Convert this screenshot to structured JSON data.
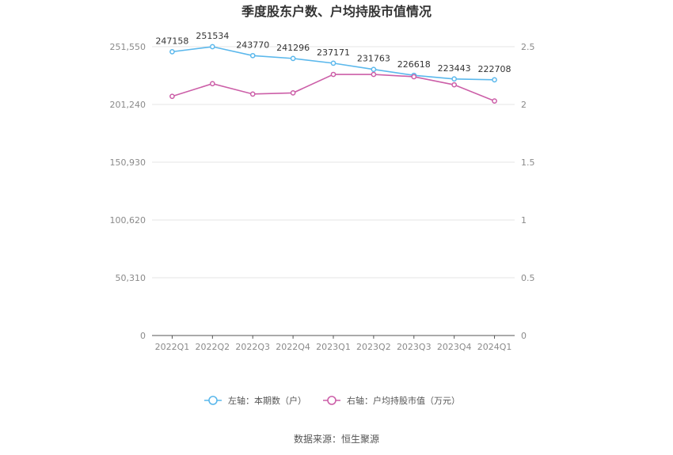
{
  "chart_data": {
    "type": "line",
    "title": "季度股东户数、户均持股市值情况",
    "categories": [
      "2022Q1",
      "2022Q2",
      "2022Q3",
      "2022Q4",
      "2023Q1",
      "2023Q2",
      "2023Q3",
      "2023Q4",
      "2024Q1"
    ],
    "left_axis": {
      "ticks": [
        0,
        50310,
        100620,
        150930,
        201240,
        251550
      ],
      "tick_labels": [
        "0",
        "50,310",
        "100,620",
        "150,930",
        "201,240",
        "251,550"
      ],
      "range": [
        0,
        251550
      ]
    },
    "right_axis": {
      "ticks": [
        0,
        0.5,
        1,
        1.5,
        2,
        2.5
      ],
      "tick_labels": [
        "0",
        "0.5",
        "1",
        "1.5",
        "2",
        "2.5"
      ],
      "range": [
        0,
        2.5
      ]
    },
    "series": [
      {
        "name": "左轴：本期数（户）",
        "axis": "left",
        "color": "#5bb8ec",
        "values": [
          247158,
          251534,
          243770,
          241296,
          237171,
          231763,
          226618,
          223443,
          222708
        ],
        "labels": [
          "247158",
          "251534",
          "243770",
          "241296",
          "237171",
          "231763",
          "226618",
          "223443",
          "222708"
        ]
      },
      {
        "name": "右轴：户均持股市值（万元）",
        "axis": "right",
        "color": "#cc5fa8",
        "values": [
          2.07,
          2.18,
          2.09,
          2.1,
          2.26,
          2.26,
          2.24,
          2.17,
          2.03
        ]
      }
    ],
    "grid": true,
    "legend_position": "bottom"
  },
  "source": "数据来源：恒生聚源"
}
